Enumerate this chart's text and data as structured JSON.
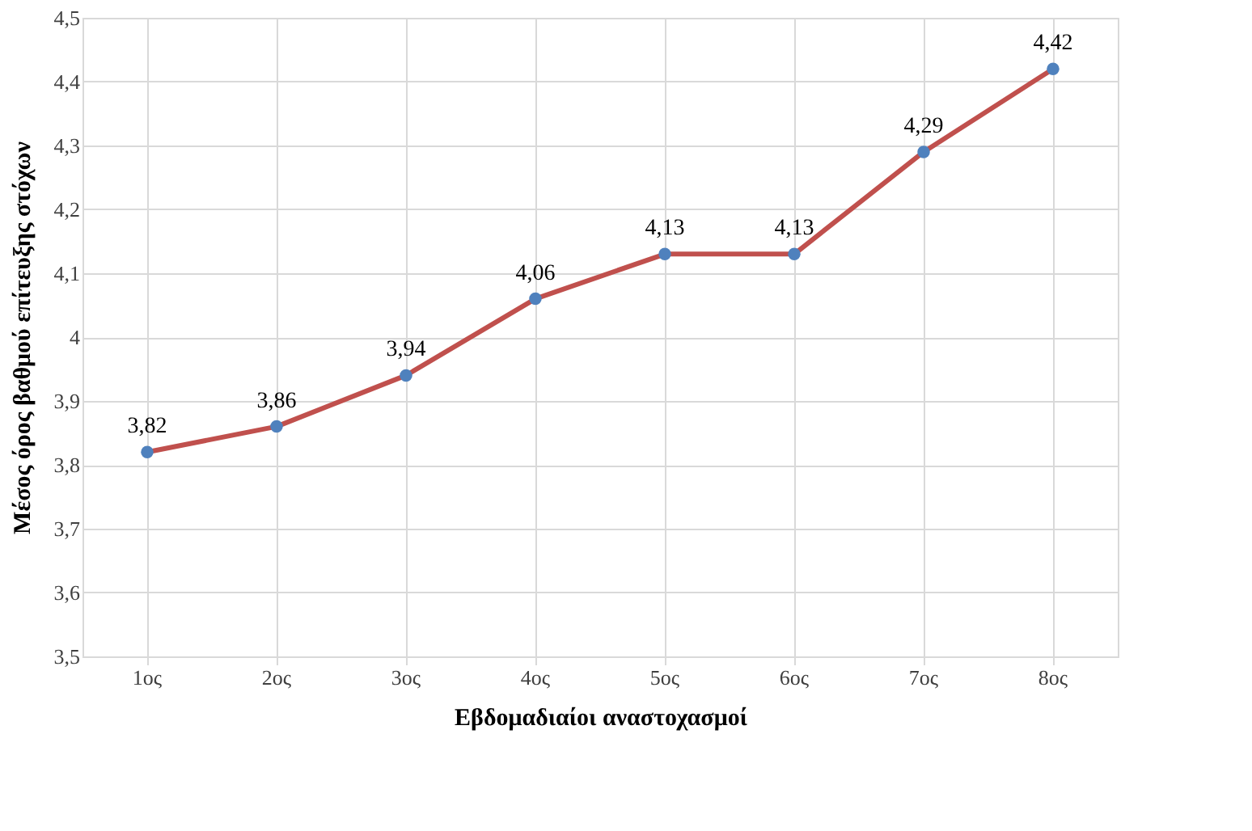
{
  "chart_data": {
    "type": "line",
    "xlabel": "Εβδομαδιαίοι αναστοχασμοί",
    "ylabel": "Μέσος όρος βαθμού επίτευξης στόχων",
    "categories": [
      "1ος",
      "2ος",
      "3ος",
      "4ος",
      "5ος",
      "6ος",
      "7ος",
      "8ος"
    ],
    "series": [
      {
        "color": "#c0504d",
        "colors": [
          "#4f81bd",
          "#4f81bd",
          "#4f81bd",
          "#4f81bd",
          "#4f81bd",
          "#4f81bd",
          "#4f81bd",
          "#4f81bd"
        ],
        "values": [
          3.82,
          3.86,
          3.94,
          4.06,
          4.13,
          4.13,
          4.29,
          4.42
        ],
        "value_labels": [
          "3,82",
          "3,86",
          "3,94",
          "4,06",
          "4,13",
          "4,13",
          "4,29",
          "4,42"
        ]
      }
    ],
    "ylim": [
      3.5,
      4.5
    ],
    "yticks": [
      {
        "value": 3.5,
        "label": "3,5"
      },
      {
        "value": 3.6,
        "label": "3,6"
      },
      {
        "value": 3.7,
        "label": "3,7"
      },
      {
        "value": 3.8,
        "label": "3,8"
      },
      {
        "value": 3.9,
        "label": "3,9"
      },
      {
        "value": 4,
        "label": "4"
      },
      {
        "value": 4.1,
        "label": "4,1"
      },
      {
        "value": 4.2,
        "label": "4,2"
      },
      {
        "value": 4.3,
        "label": "4,3"
      },
      {
        "value": 4.4,
        "label": "4,4"
      },
      {
        "value": 4.5,
        "label": "4,5"
      }
    ],
    "grid": true,
    "marker": "circle",
    "line_style": "solid"
  }
}
